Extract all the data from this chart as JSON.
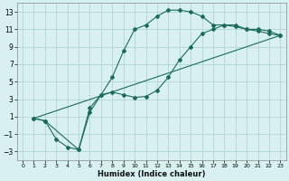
{
  "xlabel": "Humidex (Indice chaleur)",
  "bg_color": "#d8f0f0",
  "line_color": "#1a6b5a",
  "grid_color": "#b8d8d8",
  "xlim": [
    -0.5,
    23.5
  ],
  "ylim": [
    -4,
    14
  ],
  "xticks": [
    0,
    1,
    2,
    3,
    4,
    5,
    6,
    7,
    8,
    9,
    10,
    11,
    12,
    13,
    14,
    15,
    16,
    17,
    18,
    19,
    20,
    21,
    22,
    23
  ],
  "yticks": [
    -3,
    -1,
    1,
    3,
    5,
    7,
    9,
    11,
    13
  ],
  "line1_x": [
    1,
    2,
    3,
    4,
    5,
    6,
    7,
    8,
    9,
    10,
    11,
    12,
    13,
    14,
    15,
    16,
    17,
    18,
    19,
    20,
    21,
    22,
    23
  ],
  "line1_y": [
    0.8,
    0.5,
    -1.6,
    -2.5,
    -2.8,
    1.5,
    3.5,
    5.5,
    8.5,
    11.0,
    11.5,
    12.5,
    13.2,
    13.2,
    13.0,
    12.5,
    11.5,
    11.5,
    11.3,
    11.0,
    11.0,
    10.8,
    10.3
  ],
  "line2_x": [
    1,
    2,
    5,
    6,
    7,
    8,
    9,
    10,
    11,
    12,
    13,
    14,
    15,
    16,
    17,
    18,
    19,
    20,
    21,
    22,
    23
  ],
  "line2_y": [
    0.8,
    0.5,
    -2.8,
    2.0,
    3.5,
    3.8,
    3.5,
    3.2,
    3.3,
    4.0,
    5.5,
    7.5,
    9.0,
    10.5,
    11.0,
    11.5,
    11.5,
    11.0,
    10.8,
    10.5,
    10.3
  ],
  "line3_x": [
    1,
    23
  ],
  "line3_y": [
    0.8,
    10.3
  ]
}
